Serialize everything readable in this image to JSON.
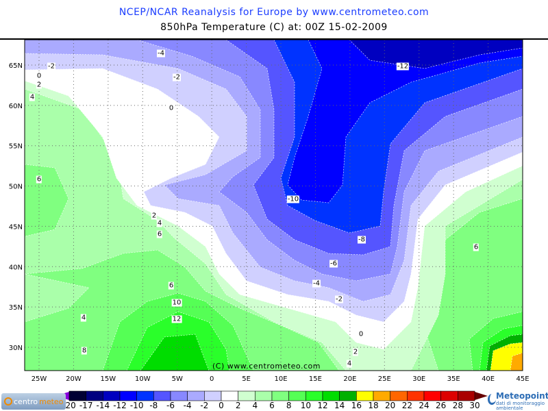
{
  "title": "NCEP/NCAR Reanalysis for Europe by www.centrometeo.com",
  "subtitle": "850hPa Temperature (C) at: 00Z 15-02-2009",
  "copyright": "(C) www.centrometeo.com",
  "logos": {
    "left": "centro",
    "left_accent": "meteo",
    "right": "Meteopoint",
    "right_tagline": "dati di monitoraggio ambientale"
  },
  "map": {
    "lon_ticks": [
      {
        "lon": -25,
        "label": "25W"
      },
      {
        "lon": -20,
        "label": "20W"
      },
      {
        "lon": -15,
        "label": "15W"
      },
      {
        "lon": -10,
        "label": "10W"
      },
      {
        "lon": -5,
        "label": "5W"
      },
      {
        "lon": 0,
        "label": "0"
      },
      {
        "lon": 5,
        "label": "5E"
      },
      {
        "lon": 10,
        "label": "10E"
      },
      {
        "lon": 15,
        "label": "15E"
      },
      {
        "lon": 20,
        "label": "20E"
      },
      {
        "lon": 25,
        "label": "25E"
      },
      {
        "lon": 30,
        "label": "30E"
      },
      {
        "lon": 35,
        "label": "35E"
      },
      {
        "lon": 40,
        "label": "40E"
      },
      {
        "lon": 45,
        "label": "45E"
      }
    ],
    "lat_ticks": [
      {
        "lat": 65,
        "label": "65N"
      },
      {
        "lat": 60,
        "label": "60N"
      },
      {
        "lat": 55,
        "label": "55N"
      },
      {
        "lat": 50,
        "label": "50N"
      },
      {
        "lat": 45,
        "label": "45N"
      },
      {
        "lat": 40,
        "label": "40N"
      },
      {
        "lat": 35,
        "label": "35N"
      },
      {
        "lat": 30,
        "label": "30N"
      }
    ],
    "contour_labels": [
      "-2",
      "0",
      "2",
      "4",
      "-4",
      "-2",
      "0",
      "-12",
      "6",
      "-10",
      "2",
      "4",
      "6",
      "-8",
      "6",
      "-6",
      "6",
      "-4",
      "-2",
      "10",
      "12",
      "4",
      "0",
      "2",
      "8",
      "4"
    ]
  },
  "legend": {
    "labels": [
      "-20",
      "-17",
      "-14",
      "-12",
      "-10",
      "-8",
      "-6",
      "-4",
      "-2",
      "0",
      "2",
      "4",
      "6",
      "8",
      "10",
      "12",
      "14",
      "16",
      "18",
      "20",
      "22",
      "24",
      "26",
      "28",
      "30"
    ],
    "colors": [
      "#000033",
      "#000080",
      "#0000c0",
      "#0000ff",
      "#0033ff",
      "#5555ff",
      "#8888ff",
      "#aaaaff",
      "#d0d0ff",
      "#ffffff",
      "#d0ffd0",
      "#aaffaa",
      "#80ff80",
      "#55ff55",
      "#2aff2a",
      "#00dd00",
      "#00b000",
      "#ffff00",
      "#ffaa00",
      "#ff6600",
      "#ff3300",
      "#ff0000",
      "#dd0000",
      "#aa0000"
    ],
    "low_arrow_color": "#8800dd",
    "high_arrow_color": "#660000"
  }
}
